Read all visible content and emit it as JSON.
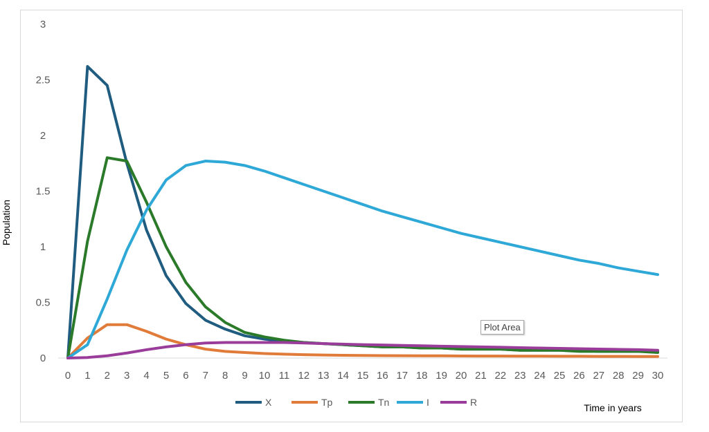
{
  "chart_data": {
    "type": "line",
    "title": "",
    "xlabel": "Time in years",
    "ylabel": "Population",
    "x": [
      0,
      1,
      2,
      3,
      4,
      5,
      6,
      7,
      8,
      9,
      10,
      11,
      12,
      13,
      14,
      15,
      16,
      17,
      18,
      19,
      20,
      21,
      22,
      23,
      24,
      25,
      26,
      27,
      28,
      29,
      30
    ],
    "xlim": [
      0,
      30
    ],
    "ylim": [
      0,
      3
    ],
    "yticks": [
      "0",
      "0.5",
      "1",
      "1.5",
      "2",
      "2.5",
      "3"
    ],
    "grid": false,
    "legend_position": "bottom",
    "series": [
      {
        "name": "X",
        "color": "#1f5c80",
        "values": [
          0,
          2.62,
          2.45,
          1.75,
          1.15,
          0.74,
          0.49,
          0.34,
          0.26,
          0.2,
          0.17,
          0.15,
          0.14,
          0.13,
          0.12,
          0.11,
          0.1,
          0.1,
          0.09,
          0.09,
          0.08,
          0.08,
          0.08,
          0.07,
          0.07,
          0.07,
          0.07,
          0.06,
          0.06,
          0.06,
          0.06
        ]
      },
      {
        "name": "Tp",
        "color": "#e07b39",
        "values": [
          0,
          0.18,
          0.3,
          0.3,
          0.24,
          0.17,
          0.12,
          0.08,
          0.06,
          0.05,
          0.04,
          0.035,
          0.03,
          0.027,
          0.025,
          0.023,
          0.022,
          0.021,
          0.02,
          0.02,
          0.019,
          0.018,
          0.018,
          0.017,
          0.017,
          0.016,
          0.016,
          0.015,
          0.015,
          0.014,
          0.014
        ]
      },
      {
        "name": "Tn",
        "color": "#2a7a2a",
        "values": [
          0,
          1.05,
          1.8,
          1.77,
          1.4,
          1.0,
          0.68,
          0.46,
          0.32,
          0.23,
          0.19,
          0.16,
          0.14,
          0.13,
          0.12,
          0.11,
          0.1,
          0.1,
          0.09,
          0.09,
          0.08,
          0.08,
          0.08,
          0.07,
          0.07,
          0.07,
          0.06,
          0.06,
          0.06,
          0.06,
          0.05
        ]
      },
      {
        "name": "I",
        "color": "#2ea8d6",
        "values": [
          0,
          0.12,
          0.53,
          0.97,
          1.33,
          1.6,
          1.73,
          1.77,
          1.76,
          1.73,
          1.68,
          1.62,
          1.56,
          1.5,
          1.44,
          1.38,
          1.32,
          1.27,
          1.22,
          1.17,
          1.12,
          1.08,
          1.04,
          1.0,
          0.96,
          0.92,
          0.88,
          0.85,
          0.81,
          0.78,
          0.75
        ]
      },
      {
        "name": "R",
        "color": "#9a3d9a",
        "values": [
          0,
          0.005,
          0.02,
          0.045,
          0.075,
          0.1,
          0.12,
          0.135,
          0.14,
          0.14,
          0.14,
          0.14,
          0.135,
          0.13,
          0.125,
          0.12,
          0.117,
          0.113,
          0.11,
          0.106,
          0.103,
          0.1,
          0.097,
          0.093,
          0.09,
          0.087,
          0.084,
          0.081,
          0.078,
          0.075,
          0.07
        ]
      }
    ]
  },
  "tooltip": {
    "text": "Plot Area"
  }
}
